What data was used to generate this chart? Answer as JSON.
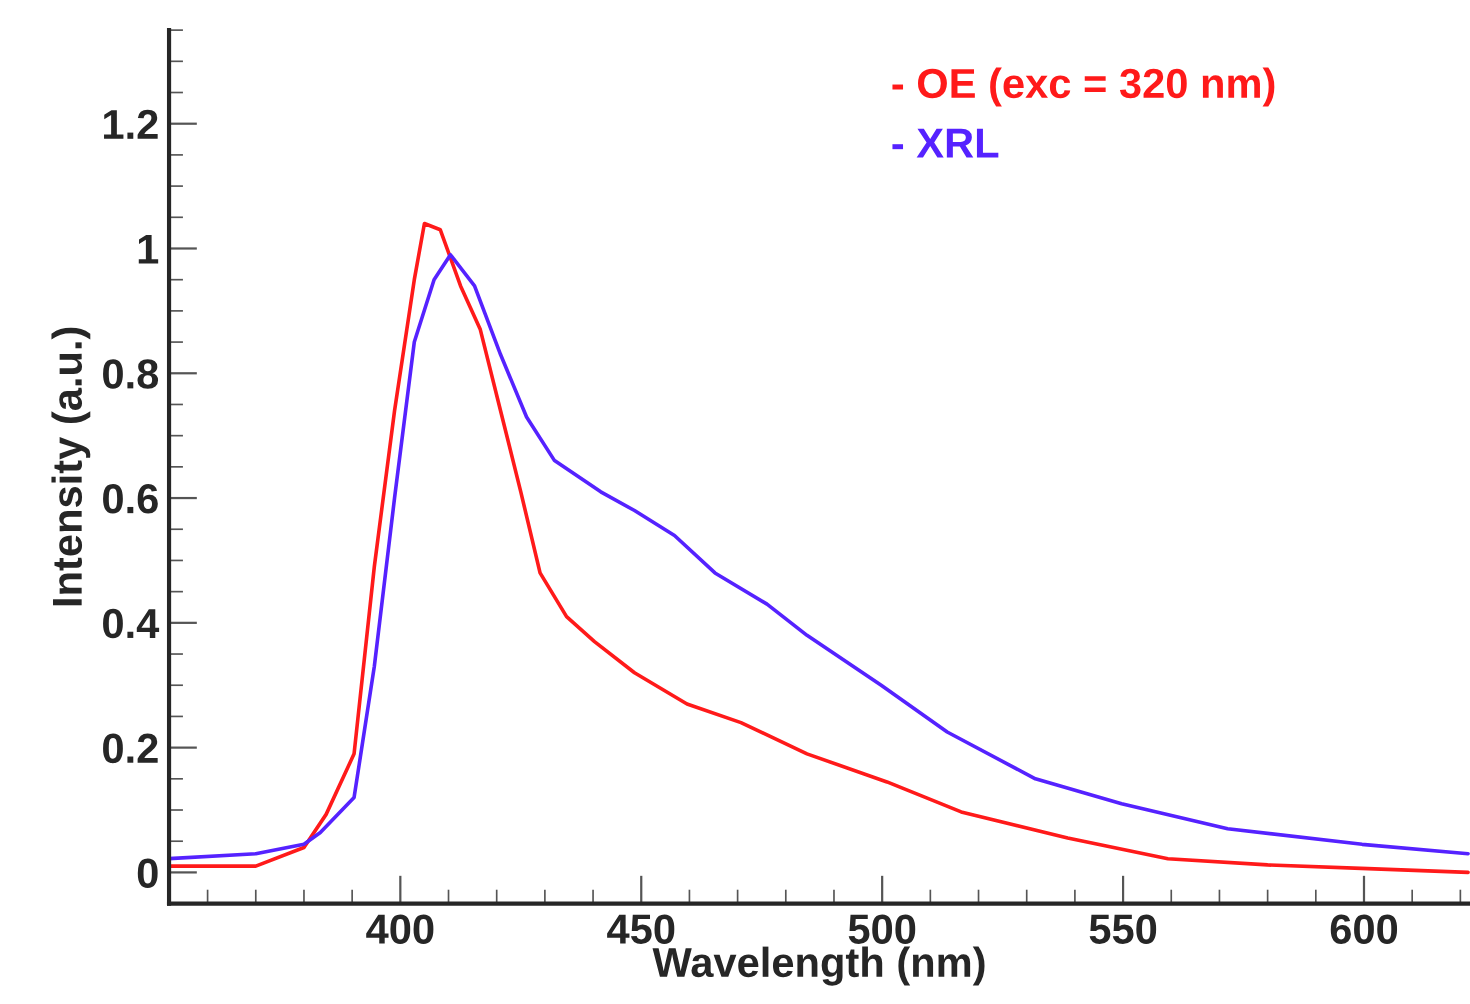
{
  "chart_data": {
    "type": "line",
    "xlabel": "Wavelength (nm)",
    "ylabel": "Intensity (a.u.)",
    "xlim": [
      352,
      622
    ],
    "xticks": [
      400,
      450,
      500,
      550,
      600
    ],
    "ylim": [
      -0.05,
      1.35
    ],
    "yticks": [
      0,
      0.2,
      0.4,
      0.6,
      0.8,
      1,
      1.2
    ],
    "legend": "top right",
    "grid": false,
    "line_style": "solid",
    "marker": "none",
    "series": [
      {
        "name": "- OE (exc = 320 nm)",
        "color": "#ff1a1a",
        "x": [
          352,
          370,
          380,
          384.6,
          390.4,
          394.6,
          398.8,
          402.9,
          405,
          408.3,
          412.5,
          416.6,
          420.8,
          425,
          429,
          434.5,
          440.3,
          448.6,
          459.5,
          470.7,
          484.4,
          501,
          516.4,
          538.5,
          559.3,
          580,
          600.8,
          621.6
        ],
        "values": [
          0.01,
          0.01,
          0.04,
          0.093,
          0.19,
          0.49,
          0.74,
          0.95,
          1.04,
          1.03,
          0.94,
          0.87,
          0.74,
          0.61,
          0.48,
          0.41,
          0.37,
          0.32,
          0.27,
          0.24,
          0.19,
          0.145,
          0.097,
          0.055,
          0.022,
          0.012,
          0.006,
          0.0
        ]
      },
      {
        "name": "- XRL",
        "color": "#5522ff",
        "x": [
          352,
          370,
          380,
          383.4,
          390.4,
          394.6,
          398.8,
          402.9,
          407,
          410.4,
          415.4,
          420.8,
          426.2,
          432,
          441.6,
          448.6,
          456.9,
          465.3,
          476.1,
          484.4,
          499.8,
          513.5,
          531.8,
          549.7,
          571.7,
          599.6,
          621.6
        ],
        "values": [
          0.022,
          0.03,
          0.045,
          0.064,
          0.12,
          0.33,
          0.6,
          0.85,
          0.95,
          0.99,
          0.94,
          0.83,
          0.73,
          0.66,
          0.61,
          0.58,
          0.54,
          0.48,
          0.43,
          0.38,
          0.3,
          0.225,
          0.15,
          0.11,
          0.07,
          0.045,
          0.03
        ]
      }
    ]
  }
}
